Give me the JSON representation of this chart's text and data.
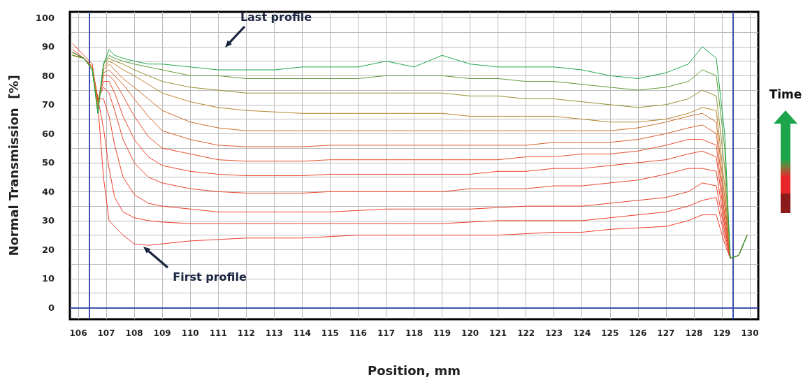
{
  "chart_data": {
    "type": "line",
    "xlabel": "Position, mm",
    "ylabel": "Normal Transmission  [%]",
    "x": [
      105.8,
      106.2,
      106.5,
      106.7,
      106.9,
      107.1,
      107.3,
      107.6,
      108,
      108.5,
      109,
      110,
      111,
      112,
      113,
      114,
      115,
      116,
      117,
      118,
      119,
      120,
      121,
      122,
      123,
      124,
      125,
      126,
      127,
      127.8,
      128.3,
      128.8,
      129.1,
      129.3,
      129.6,
      129.9
    ],
    "series": [
      {
        "color": "#f03c2e",
        "values": [
          91,
          87,
          84,
          70,
          45,
          30,
          28,
          25,
          22,
          21.5,
          22,
          23,
          23.5,
          24,
          24,
          24,
          24.5,
          25,
          25,
          25,
          25,
          25,
          25,
          25.5,
          26,
          26,
          27,
          27.5,
          28,
          30,
          32,
          32,
          22,
          17,
          18,
          25
        ]
      },
      {
        "color": "#ee3e2c",
        "values": [
          89,
          86,
          83,
          72,
          62,
          48,
          38,
          33,
          31,
          30,
          29.5,
          29,
          29,
          29,
          29,
          29,
          29,
          29,
          29,
          29,
          29,
          29.5,
          30,
          30,
          30,
          30,
          31,
          32,
          33,
          35,
          37,
          38,
          24,
          17,
          18,
          25
        ]
      },
      {
        "color": "#ec402c",
        "values": [
          88,
          86,
          82,
          72,
          72,
          66,
          56,
          45,
          39,
          36,
          35,
          34,
          33,
          33,
          33,
          33,
          33,
          33.5,
          34,
          34,
          34,
          34,
          34.5,
          35,
          35,
          35,
          36,
          37,
          38,
          40,
          43,
          42,
          26,
          17,
          18,
          25
        ]
      },
      {
        "color": "#ea432c",
        "values": [
          88,
          86,
          83,
          72,
          76,
          74,
          68,
          58,
          50,
          45,
          43,
          41,
          40,
          39.5,
          39.5,
          39.5,
          40,
          40,
          40,
          40,
          40,
          41,
          41,
          41,
          42,
          42,
          43,
          44,
          46,
          48,
          48,
          47,
          28,
          17,
          18,
          25
        ]
      },
      {
        "color": "#e8472c",
        "values": [
          88,
          86,
          83,
          71,
          78,
          78,
          74,
          66,
          58,
          52,
          49,
          47,
          46,
          45.5,
          45.5,
          45.5,
          46,
          46,
          46,
          46,
          46,
          46,
          47,
          47,
          48,
          48,
          49,
          50,
          51,
          53,
          54,
          52,
          30,
          17,
          18,
          25
        ]
      },
      {
        "color": "#e4502c",
        "values": [
          88,
          86,
          83,
          71,
          80,
          80,
          78,
          73,
          66,
          59,
          55,
          53,
          51,
          50.5,
          50.5,
          50.5,
          51,
          51,
          51,
          51,
          51,
          51,
          51,
          52,
          52,
          53,
          53,
          54,
          56,
          58,
          58,
          56,
          32,
          17,
          18,
          25
        ]
      },
      {
        "color": "#da5e2c",
        "values": [
          87,
          86,
          83,
          70,
          81,
          82,
          80,
          77,
          72,
          66,
          61,
          58,
          56,
          55.5,
          55.5,
          55.5,
          56,
          56,
          56,
          56,
          56,
          56,
          56,
          56,
          57,
          57,
          57,
          58,
          60,
          62,
          63,
          60,
          35,
          17,
          18,
          25
        ]
      },
      {
        "color": "#cc702c",
        "values": [
          87,
          86,
          83,
          70,
          82,
          84,
          82,
          79,
          76,
          72,
          68,
          64,
          62,
          61,
          61,
          61,
          61,
          61,
          61,
          61,
          61,
          61,
          61,
          61,
          61,
          61,
          61,
          62,
          64,
          66,
          67,
          64,
          38,
          17,
          18,
          25
        ]
      },
      {
        "color": "#b8852e",
        "values": [
          87,
          86,
          83,
          69,
          83,
          85,
          84,
          82,
          80,
          77,
          74,
          71,
          69,
          68,
          67.5,
          67,
          67,
          67,
          67,
          67,
          67,
          66,
          66,
          66,
          66,
          65,
          64,
          64,
          65,
          67,
          69,
          68,
          42,
          17,
          18,
          25
        ]
      },
      {
        "color": "#978f32",
        "values": [
          87,
          86,
          82,
          68,
          84,
          86,
          85,
          84,
          82,
          80,
          78,
          76,
          75,
          74,
          74,
          74,
          74,
          74,
          74,
          74,
          74,
          73,
          73,
          72,
          72,
          71,
          70,
          69,
          70,
          72,
          75,
          73,
          48,
          17,
          18,
          25
        ]
      },
      {
        "color": "#5c9b3a",
        "values": [
          87,
          86,
          82,
          67,
          84,
          87,
          86,
          85,
          84,
          83,
          82,
          80,
          80,
          79,
          79,
          79,
          79,
          79,
          80,
          80,
          80,
          79,
          79,
          78,
          78,
          77,
          76,
          75,
          76,
          78,
          82,
          80,
          55,
          17,
          18,
          25
        ]
      },
      {
        "color": "#1fa84a",
        "values": [
          88,
          86,
          82,
          67,
          84,
          89,
          87,
          86,
          85,
          84,
          84,
          83,
          82,
          82,
          82,
          83,
          83,
          83,
          85,
          83,
          87,
          84,
          83,
          83,
          83,
          82,
          80,
          79,
          81,
          84,
          90,
          86,
          60,
          17,
          18,
          25
        ]
      }
    ],
    "xlim": [
      105.7,
      130.3
    ],
    "xticks": [
      106,
      107,
      108,
      109,
      110,
      111,
      112,
      113,
      114,
      115,
      116,
      117,
      118,
      119,
      120,
      121,
      122,
      123,
      124,
      125,
      126,
      127,
      128,
      129,
      130
    ],
    "ylim": [
      -4,
      102
    ],
    "yticks": [
      0,
      {
        "value": 5,
        "label": null
      },
      10,
      {
        "value": 15,
        "label": null
      },
      20,
      {
        "value": 25,
        "label": null
      },
      30,
      {
        "value": 35,
        "label": null
      },
      40,
      {
        "value": 45,
        "label": null
      },
      50,
      {
        "value": 55,
        "label": null
      },
      60,
      {
        "value": 65,
        "label": null
      },
      70,
      {
        "value": 75,
        "label": null
      },
      80,
      {
        "value": 85,
        "label": null
      },
      90,
      {
        "value": 95,
        "label": null
      },
      100
    ],
    "grid": true,
    "marker": "none",
    "line_style": "solid",
    "ref_lines": [
      {
        "axis": "x",
        "value": 106.4,
        "color": "#3f4fb0"
      },
      {
        "axis": "x",
        "value": 129.4,
        "color": "#3f4fb0"
      },
      {
        "axis": "y",
        "value": 0,
        "color": "#3f4fb0"
      }
    ],
    "annotations": [
      "Last profile",
      "First profile",
      "Time"
    ]
  }
}
